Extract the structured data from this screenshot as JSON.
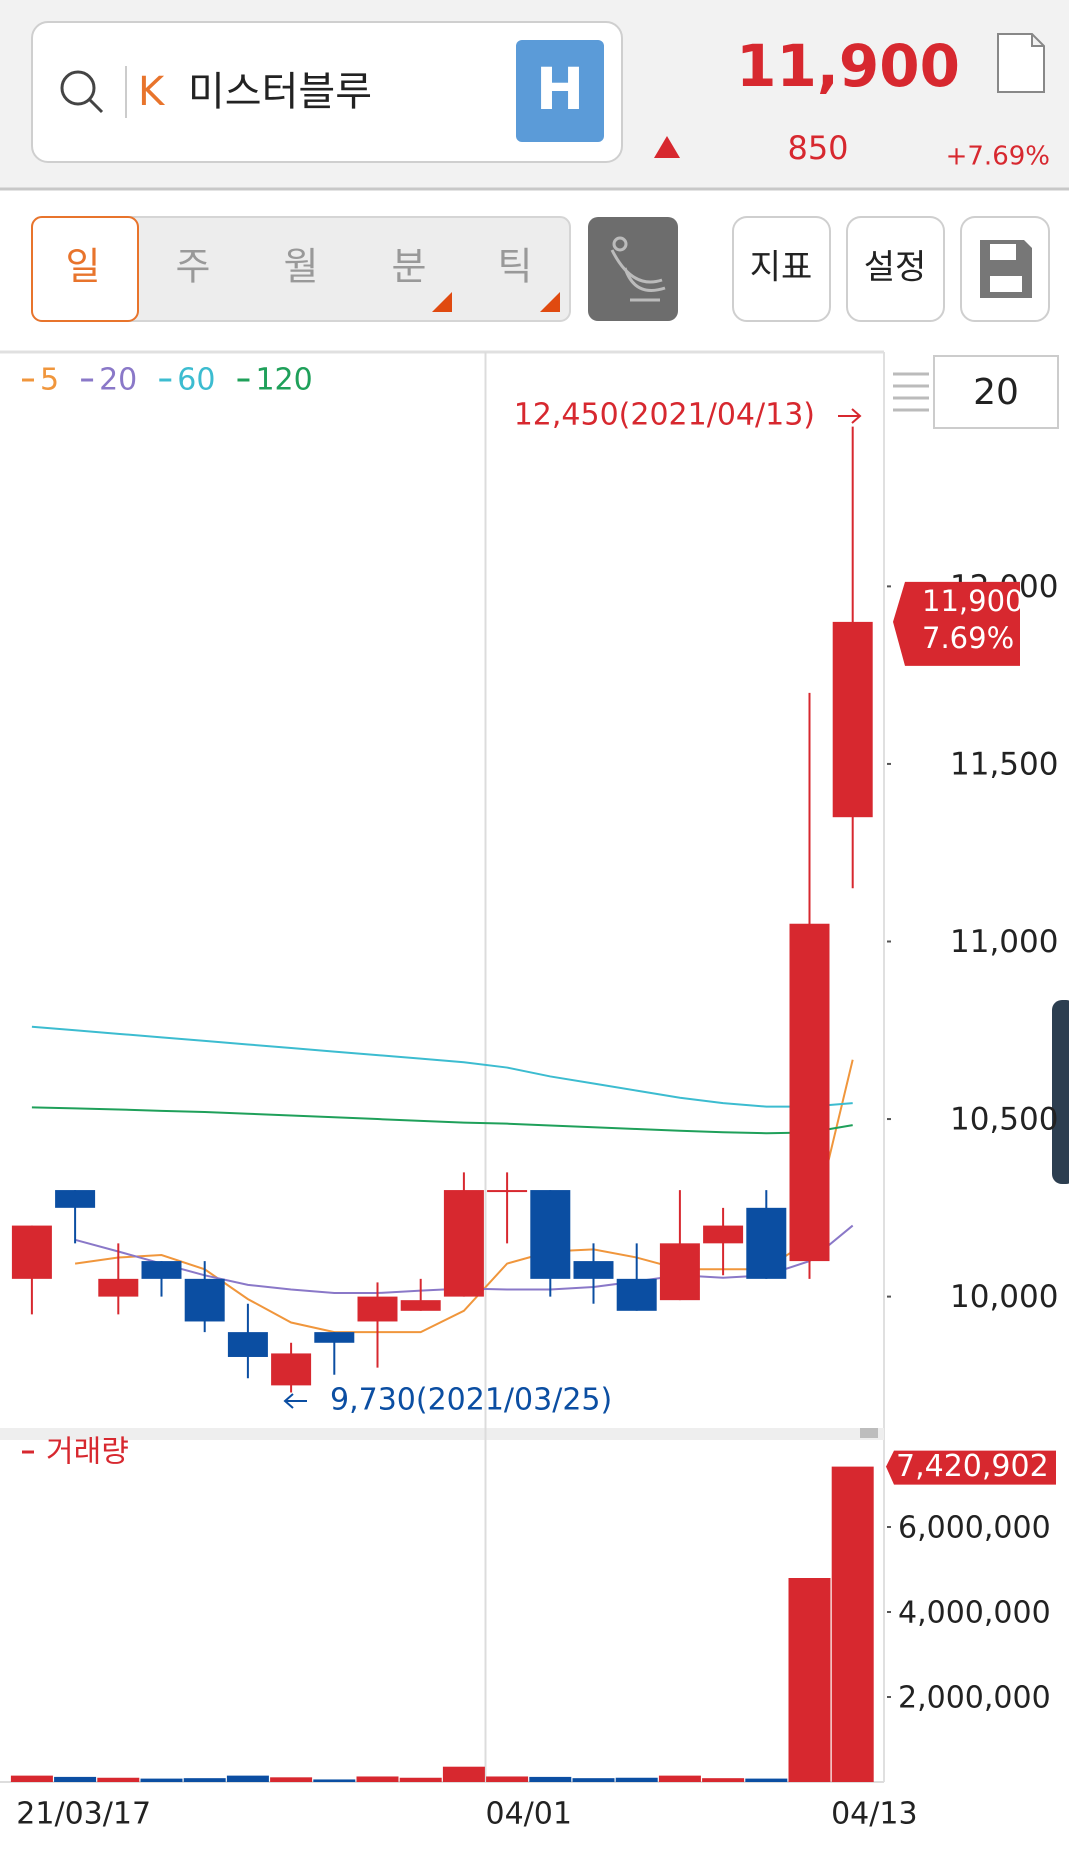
{
  "header": {
    "market": "K",
    "stock_name": "미스터블루",
    "badge": "H",
    "price": "11,900",
    "change": "850",
    "change_rate": "+7.69%"
  },
  "toolbar": {
    "tabs": [
      "일",
      "주",
      "월",
      "분",
      "틱"
    ],
    "buttons": [
      "지표",
      "설정"
    ]
  },
  "period_count": "20",
  "chart_data": [
    {
      "type": "candlestick",
      "categories": [
        "21/03/17",
        null,
        null,
        null,
        null,
        null,
        null,
        null,
        null,
        null,
        null,
        "04/01",
        null,
        null,
        null,
        null,
        null,
        null,
        null,
        "04/13"
      ],
      "open": [
        10050,
        10300,
        10000,
        10100,
        10050,
        9900,
        9750,
        9900,
        9930,
        9960,
        10000,
        10300,
        10300,
        10100,
        10050,
        9990,
        10150,
        10250,
        10100,
        11350
      ],
      "high": [
        10200,
        10300,
        10150,
        10100,
        10100,
        9980,
        9870,
        9900,
        10040,
        10050,
        10350,
        10350,
        10300,
        10150,
        10150,
        10300,
        10250,
        10300,
        11700,
        12450
      ],
      "low": [
        9950,
        10150,
        9950,
        10000,
        9900,
        9770,
        9730,
        9780,
        9800,
        9960,
        10000,
        10150,
        10000,
        9980,
        9960,
        9990,
        10060,
        10050,
        10050,
        11150
      ],
      "close": [
        10200,
        10250,
        10050,
        10050,
        9930,
        9830,
        9840,
        9870,
        10000,
        9990,
        10300,
        10300,
        10050,
        10050,
        9960,
        10150,
        10200,
        10050,
        11050,
        11900
      ],
      "up_color": "#d7282f",
      "down_color": "#0b4ea2",
      "series": [
        {
          "name": "5",
          "color": "#f0963c",
          "values": [
            null,
            10093,
            10110,
            10117,
            10077,
            9993,
            9927,
            9900,
            9900,
            9900,
            9960,
            10093,
            10127,
            10133,
            10110,
            10077,
            10077,
            10077,
            10160,
            10667
          ]
        },
        {
          "name": "20",
          "color": "#8a78c8",
          "values": [
            null,
            10160,
            10127,
            10093,
            10060,
            10033,
            10020,
            10010,
            10010,
            10017,
            10023,
            10020,
            10020,
            10027,
            10043,
            10060,
            10053,
            10060,
            10100,
            10200
          ]
        },
        {
          "name": "60",
          "color": "#3cbcd0",
          "values": [
            10760,
            10750,
            10740,
            10730,
            10720,
            10710,
            10700,
            10690,
            10680,
            10670,
            10660,
            10645,
            10620,
            10600,
            10580,
            10560,
            10545,
            10535,
            10535,
            10545
          ]
        },
        {
          "name": "120",
          "color": "#1fa05a",
          "values": [
            10533,
            10530,
            10527,
            10523,
            10520,
            10515,
            10510,
            10505,
            10500,
            10495,
            10490,
            10487,
            10482,
            10477,
            10472,
            10467,
            10463,
            10460,
            10462,
            10483
          ]
        }
      ],
      "ylim": [
        9630,
        12660
      ],
      "yticks": [
        {
          "value": 10000,
          "label": "10,000"
        },
        {
          "value": 10500,
          "label": "10,500"
        },
        {
          "value": 11000,
          "label": "11,000"
        },
        {
          "value": 11500,
          "label": "11,500"
        },
        {
          "value": 12000,
          "label": "12,000"
        }
      ],
      "annotations": {
        "high": "12,450(2021/04/13)",
        "low": "9,730(2021/03/25)",
        "last_price": "11,900",
        "last_rate": "7.69%"
      }
    },
    {
      "type": "bar",
      "series": [
        {
          "name": "거래량",
          "color": "#d7282f",
          "values": [
            150000,
            120000,
            100000,
            80000,
            90000,
            150000,
            110000,
            60000,
            130000,
            100000,
            360000,
            130000,
            120000,
            90000,
            100000,
            150000,
            90000,
            80000,
            4800000,
            7420902
          ]
        }
      ],
      "colors": [
        "#d7282f",
        "#0b4ea2",
        "#d7282f",
        "#0b4ea2",
        "#0b4ea2",
        "#0b4ea2",
        "#d7282f",
        "#0b4ea2",
        "#d7282f",
        "#d7282f",
        "#d7282f",
        "#d7282f",
        "#0b4ea2",
        "#0b4ea2",
        "#0b4ea2",
        "#d7282f",
        "#d7282f",
        "#0b4ea2",
        "#d7282f",
        "#d7282f"
      ],
      "ylim": [
        0,
        8000000
      ],
      "yticks": [
        {
          "value": 2000000,
          "label": "2,000,000"
        },
        {
          "value": 4000000,
          "label": "4,000,000"
        },
        {
          "value": 6000000,
          "label": "6,000,000"
        }
      ],
      "annotations": {
        "last_value": "7,420,902"
      }
    }
  ]
}
